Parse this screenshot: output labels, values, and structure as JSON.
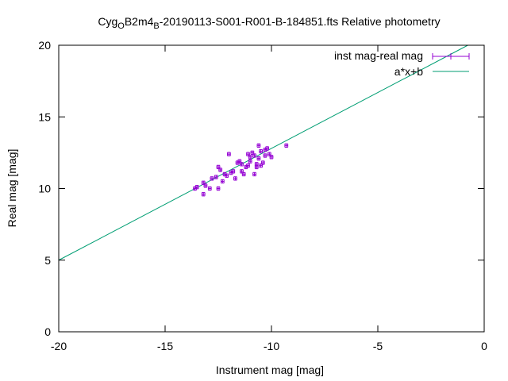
{
  "chart_data": {
    "type": "scatter",
    "title": {
      "parts": [
        {
          "text": "Cyg",
          "sub": false
        },
        {
          "text": "O",
          "sub": true
        },
        {
          "text": "B2m4",
          "sub": false
        },
        {
          "text": "B",
          "sub": true
        },
        {
          "text": "-20190113-S001-R001-B-184851.fts Relative photometry",
          "sub": false
        }
      ]
    },
    "xlabel": "Instrument mag [mag]",
    "ylabel": "Real mag [mag]",
    "xlim": [
      -20,
      0
    ],
    "ylim": [
      0,
      20
    ],
    "xticks": [
      -20,
      -15,
      -10,
      -5,
      0
    ],
    "yticks": [
      0,
      5,
      10,
      15,
      20
    ],
    "grid": false,
    "legend_position": "top-right",
    "series": [
      {
        "name": "inst mag-real mag",
        "kind": "points-with-errorbars",
        "color": "#9400d3",
        "points": [
          {
            "x": -13.6,
            "y": 10.0
          },
          {
            "x": -13.5,
            "y": 10.1
          },
          {
            "x": -13.2,
            "y": 10.4
          },
          {
            "x": -13.2,
            "y": 9.6
          },
          {
            "x": -13.1,
            "y": 10.2
          },
          {
            "x": -12.9,
            "y": 10.0
          },
          {
            "x": -12.8,
            "y": 10.7
          },
          {
            "x": -12.6,
            "y": 10.8
          },
          {
            "x": -12.5,
            "y": 10.0
          },
          {
            "x": -12.5,
            "y": 11.5
          },
          {
            "x": -12.4,
            "y": 11.3
          },
          {
            "x": -12.3,
            "y": 10.5
          },
          {
            "x": -12.2,
            "y": 11.0
          },
          {
            "x": -12.1,
            "y": 10.9
          },
          {
            "x": -12.0,
            "y": 12.4
          },
          {
            "x": -11.9,
            "y": 11.1
          },
          {
            "x": -11.8,
            "y": 11.2
          },
          {
            "x": -11.7,
            "y": 10.7
          },
          {
            "x": -11.6,
            "y": 11.8
          },
          {
            "x": -11.5,
            "y": 11.9
          },
          {
            "x": -11.4,
            "y": 11.7
          },
          {
            "x": -11.4,
            "y": 11.2
          },
          {
            "x": -11.3,
            "y": 11.0
          },
          {
            "x": -11.2,
            "y": 11.5
          },
          {
            "x": -11.1,
            "y": 12.4
          },
          {
            "x": -11.1,
            "y": 11.6
          },
          {
            "x": -11.0,
            "y": 12.2
          },
          {
            "x": -11.0,
            "y": 11.9
          },
          {
            "x": -10.9,
            "y": 12.5
          },
          {
            "x": -10.8,
            "y": 12.3
          },
          {
            "x": -10.8,
            "y": 11.0
          },
          {
            "x": -10.7,
            "y": 11.7
          },
          {
            "x": -10.7,
            "y": 11.5
          },
          {
            "x": -10.6,
            "y": 13.0
          },
          {
            "x": -10.6,
            "y": 12.1
          },
          {
            "x": -10.5,
            "y": 12.6
          },
          {
            "x": -10.5,
            "y": 11.6
          },
          {
            "x": -10.4,
            "y": 11.8
          },
          {
            "x": -10.3,
            "y": 12.7
          },
          {
            "x": -10.3,
            "y": 12.3
          },
          {
            "x": -10.2,
            "y": 12.8
          },
          {
            "x": -10.1,
            "y": 12.4
          },
          {
            "x": -10.0,
            "y": 12.2
          },
          {
            "x": -9.3,
            "y": 13.0
          }
        ],
        "xerr": 0.07,
        "yerr": 0.12
      },
      {
        "name": "a*x+b",
        "kind": "line",
        "color": "#009e73",
        "slope": 0.78,
        "intercept": 20.6
      }
    ]
  }
}
